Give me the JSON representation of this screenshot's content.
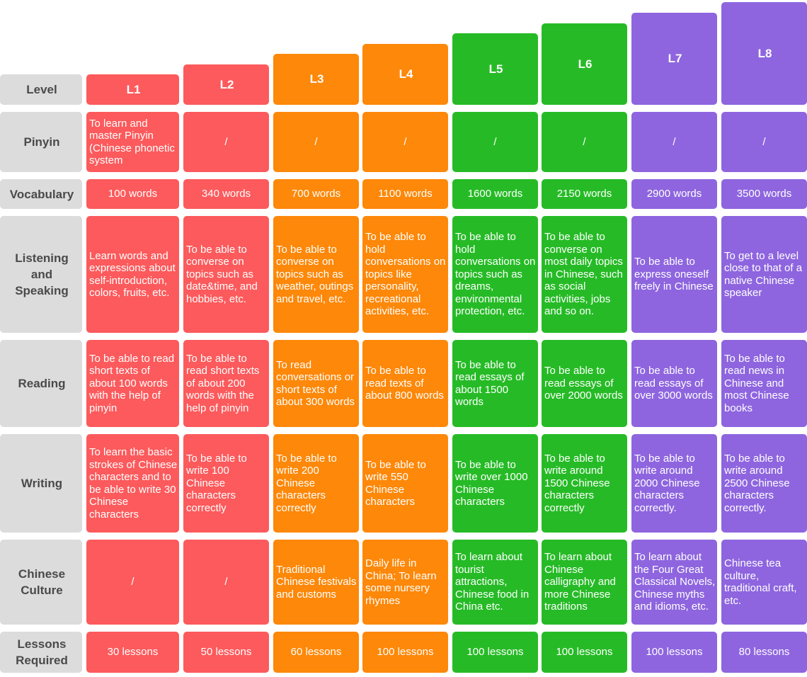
{
  "row_headers": {
    "level": "Level",
    "pinyin": "Pinyin",
    "vocabulary": "Vocabulary",
    "listening": "Listening and Speaking",
    "reading": "Reading",
    "writing": "Writing",
    "culture": "Chinese Culture",
    "lessons": "Lessons Required"
  },
  "colors": {
    "L1-L2": "#fc5a5c",
    "L3-L4": "#fd8809",
    "L5-L6": "#26bb26",
    "L7-L8": "#8e65df",
    "row_header": "#dcdcdc"
  },
  "levels": [
    {
      "name": "L1",
      "pinyin": "To learn and master Pinyin (Chinese phonetic system",
      "vocabulary": "100 words",
      "listening": "Learn words and expressions about self-introduction, colors, fruits, etc.",
      "reading": "To be able to read short texts of about 100 words with the help of pinyin",
      "writing": "To learn the basic strokes of Chinese characters and to be able to write 30 Chinese characters",
      "culture": "/",
      "lessons": "30 lessons"
    },
    {
      "name": "L2",
      "pinyin": "/",
      "vocabulary": "340 words",
      "listening": "To be able to converse on topics such as date&time, and hobbies, etc.",
      "reading": "To be able to read short texts of about 200 words with the help of pinyin",
      "writing": "To be able to write 100 Chinese characters correctly",
      "culture": "/",
      "lessons": "50 lessons"
    },
    {
      "name": "L3",
      "pinyin": "/",
      "vocabulary": "700 words",
      "listening": "To be able to converse on topics such as weather, outings and travel, etc.",
      "reading": "To read conversations or short texts of about 300 words",
      "writing": "To be able to write 200 Chinese characters correctly",
      "culture": "Traditional Chinese festivals and customs",
      "lessons": "60 lessons"
    },
    {
      "name": "L4",
      "pinyin": "/",
      "vocabulary": "1100 words",
      "listening": "To be able to hold conversations on topics like personality, recreational activities, etc.",
      "reading": "To be able to read texts of about 800 words",
      "writing": "To be able to write 550 Chinese characters",
      "culture": "Daily life in China; To learn some nursery rhymes",
      "lessons": "100 lessons"
    },
    {
      "name": "L5",
      "pinyin": "/",
      "vocabulary": "1600 words",
      "listening": "To be able to hold conversations on topics such as dreams, environmental protection, etc.",
      "reading": "To be able to read essays of about 1500 words",
      "writing": "To be able to write over 1000 Chinese characters",
      "culture": "To learn about tourist attractions, Chinese food in China etc.",
      "lessons": "100 lessons"
    },
    {
      "name": "L6",
      "pinyin": "/",
      "vocabulary": "2150 words",
      "listening": "To be able to converse on most daily topics in Chinese, such as social activities, jobs and so on.",
      "reading": "To be able to read essays of over 2000 words",
      "writing": "To be able to write around 1500 Chinese characters correctly",
      "culture": "To learn about Chinese calligraphy and more Chinese traditions",
      "lessons": "100 lessons"
    },
    {
      "name": "L7",
      "pinyin": "/",
      "vocabulary": "2900 words",
      "listening": "To be able to express oneself freely in Chinese",
      "reading": "To be able to read essays of over 3000 words",
      "writing": "To be able to write around 2000 Chinese characters correctly.",
      "culture": "To learn about the Four Great Classical Novels, Chinese myths and idioms, etc.",
      "lessons": "100 lessons"
    },
    {
      "name": "L8",
      "pinyin": "/",
      "vocabulary": "3500 words",
      "listening": "To get to a level close to that of a native Chinese speaker",
      "reading": "To be able to read news in Chinese and most Chinese books",
      "writing": "To be able to write around 2500 Chinese characters correctly.",
      "culture": "Chinese  tea culture, traditional craft, etc.",
      "lessons": "80 lessons"
    }
  ]
}
